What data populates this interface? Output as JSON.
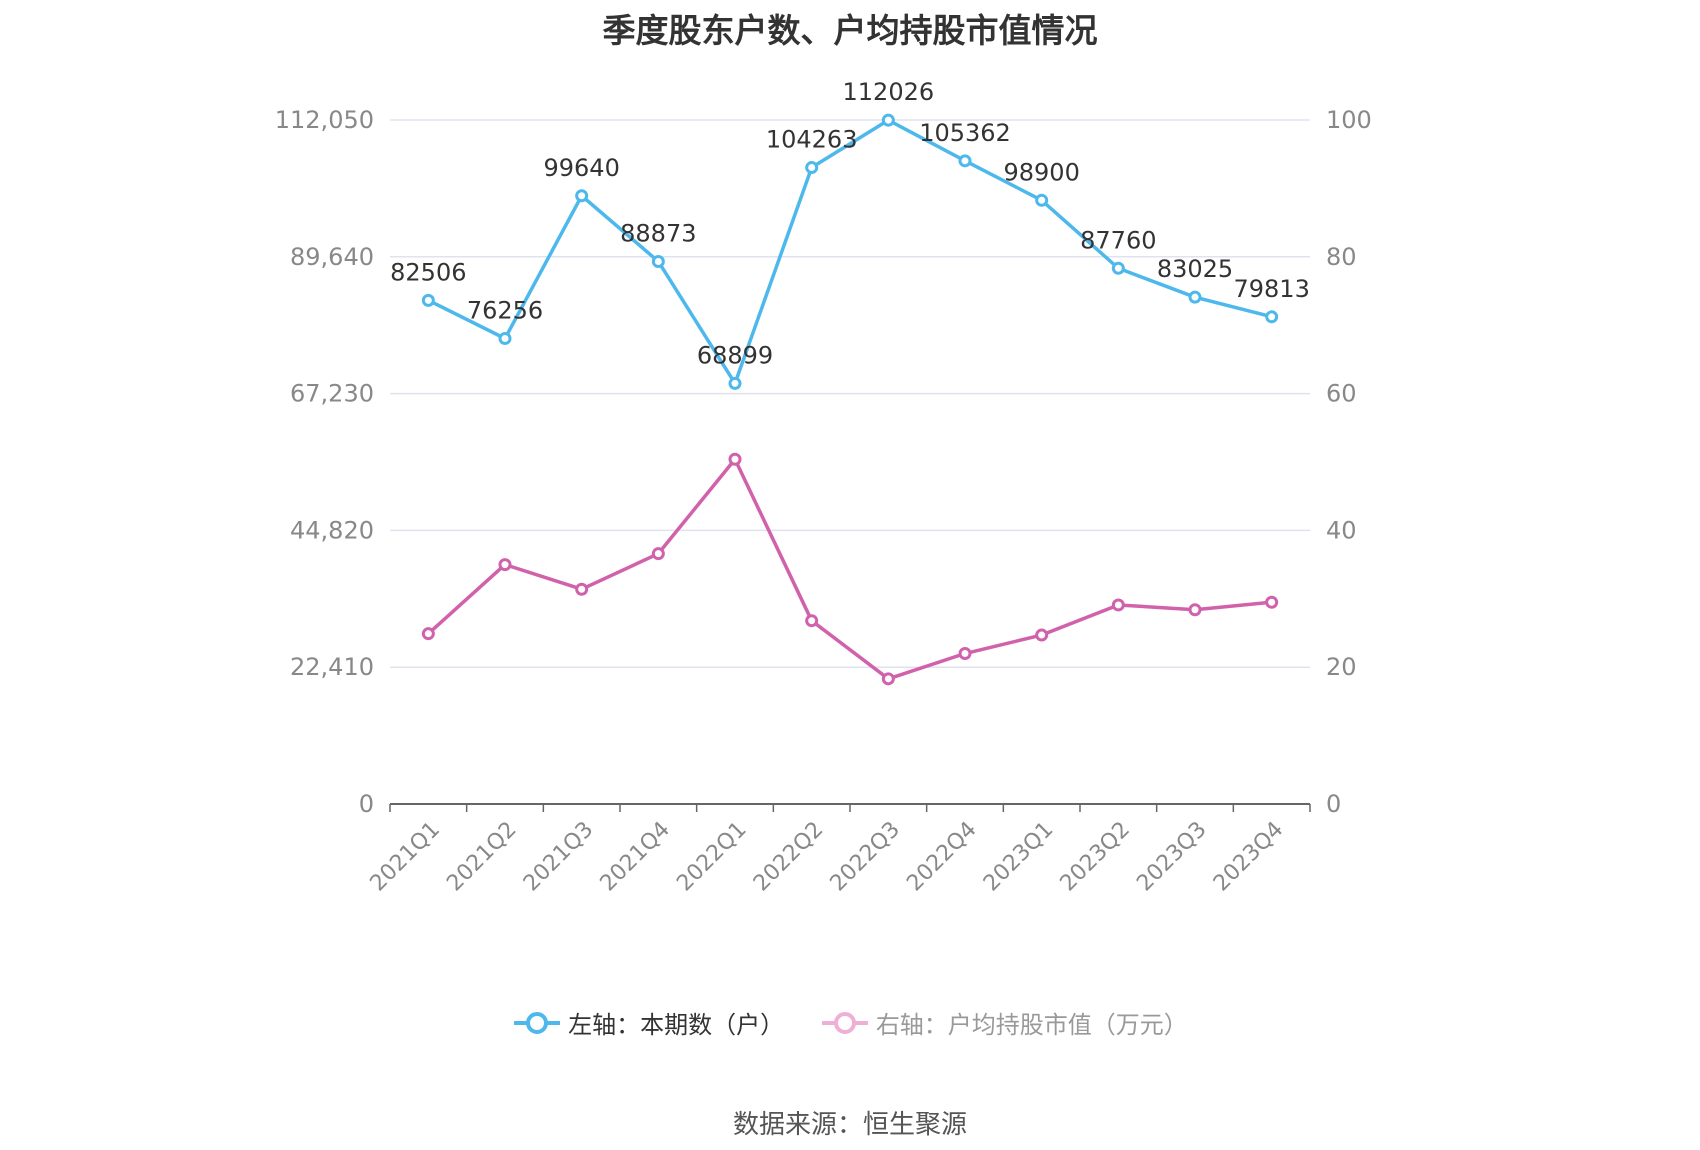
{
  "chart_data": {
    "type": "line",
    "title": "季度股东户数、户均持股市值情况",
    "categories": [
      "2021Q1",
      "2021Q2",
      "2021Q3",
      "2021Q4",
      "2022Q1",
      "2022Q2",
      "2022Q3",
      "2022Q4",
      "2023Q1",
      "2023Q2",
      "2023Q3",
      "2023Q4"
    ],
    "y_left": {
      "ticks": [
        "0",
        "22,410",
        "44,820",
        "67,230",
        "89,640",
        "112,050"
      ],
      "lim": [
        0,
        112050
      ]
    },
    "y_right": {
      "ticks": [
        "0",
        "20",
        "40",
        "60",
        "80",
        "100"
      ],
      "lim": [
        0,
        100
      ]
    },
    "grid": true,
    "legend_position": "bottom",
    "series": [
      {
        "name": "左轴：本期数（户）",
        "axis": "left",
        "color": "#4db8ec",
        "values": [
          82506,
          76256,
          99640,
          88873,
          68899,
          104263,
          112026,
          105362,
          98900,
          87760,
          83025,
          79813
        ],
        "labels": [
          "82506",
          "76256",
          "99640",
          "88873",
          "68899",
          "104263",
          "112026",
          "105362",
          "98900",
          "87760",
          "83025",
          "79813"
        ]
      },
      {
        "name": "右轴：户均持股市值（万元）",
        "axis": "right",
        "color": "#d161ab",
        "values": [
          24.9,
          35.0,
          31.4,
          36.6,
          50.4,
          26.8,
          18.3,
          22.0,
          24.7,
          29.1,
          28.4,
          29.5
        ]
      }
    ]
  },
  "source": "数据来源：恒生聚源"
}
